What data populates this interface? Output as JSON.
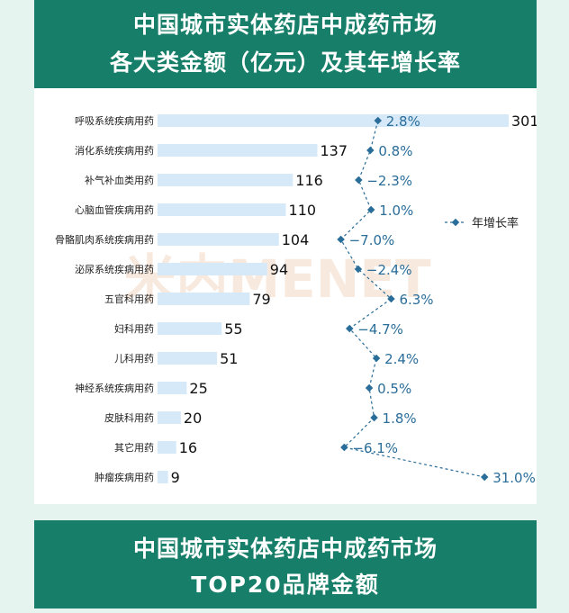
{
  "header": {
    "line1": "中国城市实体药店中成药市场",
    "line2": "各大类金额（亿元）及其年增长率"
  },
  "footer": {
    "line1": "中国城市实体药店中成药市场",
    "line2": "TOP20品牌金额"
  },
  "watermark": "米内MENET",
  "colors": {
    "header_bg": "#177f69",
    "bar": "#d6e9f9",
    "line": "#2a6d99",
    "page_bg": "#e6f4ef"
  },
  "chart_data": {
    "type": "bar",
    "orientation": "horizontal",
    "categories": [
      "呼吸系统疾病用药",
      "消化系统疾病用药",
      "补气补血类用药",
      "心脑血管疾病用药",
      "骨骼肌肉系统疾病用药",
      "泌尿系统疾病用药",
      "五官科用药",
      "妇科用药",
      "儿科用药",
      "神经系统疾病用药",
      "皮肤科用药",
      "其它用药",
      "肿瘤疾病用药"
    ],
    "series": [
      {
        "type": "bar",
        "values": [
          301,
          137,
          116,
          110,
          104,
          94,
          79,
          55,
          51,
          25,
          20,
          16,
          9
        ],
        "labels": [
          "301",
          "137",
          "116",
          "110",
          "104",
          "94",
          "79",
          "55",
          "51",
          "25",
          "20",
          "16",
          "9"
        ]
      },
      {
        "name": "年增长率",
        "type": "line",
        "values": [
          2.8,
          0.8,
          -2.3,
          1.0,
          -7.0,
          -2.4,
          6.3,
          -4.7,
          2.4,
          0.5,
          1.8,
          -6.1,
          31.0
        ],
        "labels": [
          "2.8%",
          "0.8%",
          "−2.3%",
          "1.0%",
          "−7.0%",
          "−2.4%",
          "6.3%",
          "−4.7%",
          "2.4%",
          "0.5%",
          "1.8%",
          "−6.1%",
          "31.0%"
        ]
      }
    ],
    "legend": {
      "position": "right",
      "label": "年增长率"
    },
    "grid": false
  }
}
